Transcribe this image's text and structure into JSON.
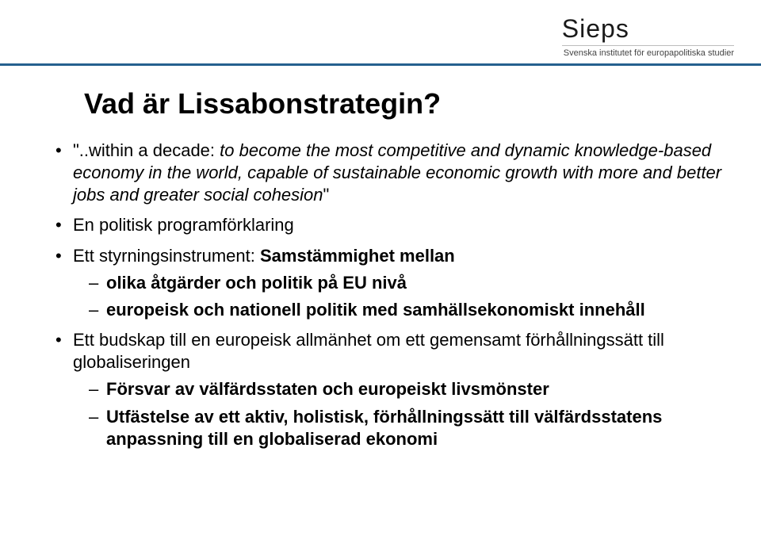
{
  "logo": {
    "title": "Sieps",
    "subtitle": "Svenska institutet för europapolitiska studier"
  },
  "colors": {
    "divider": "#25608f",
    "text": "#000000",
    "background": "#ffffff"
  },
  "slide": {
    "title": "Vad är Lissabonstrategin?",
    "bullets": [
      {
        "prefix": "\"..within a decade: ",
        "em": "to become the most competitive and dynamic knowledge-based economy in the world, capable of sustainable economic growth with more and better jobs and greater social cohesion",
        "suffix": "\""
      },
      {
        "text": "En politisk programförklaring"
      },
      {
        "text_pre": "Ett styrningsinstrument: ",
        "bold": "Samstämmighet mellan",
        "children": [
          {
            "bold": "olika åtgärder och politik på EU nivå"
          },
          {
            "bold": "europeisk och nationell politik med samhällsekonomiskt innehåll"
          }
        ]
      },
      {
        "text": "Ett budskap till en europeisk allmänhet om ett gemensamt förhållningssätt till globaliseringen",
        "children": [
          {
            "bold": "Försvar av välfärdsstaten och europeiskt livsmönster"
          },
          {
            "bold": "Utfästelse av ett aktiv, holistisk, förhållningssätt till välfärdsstatens anpassning till en globaliserad ekonomi"
          }
        ]
      }
    ]
  }
}
